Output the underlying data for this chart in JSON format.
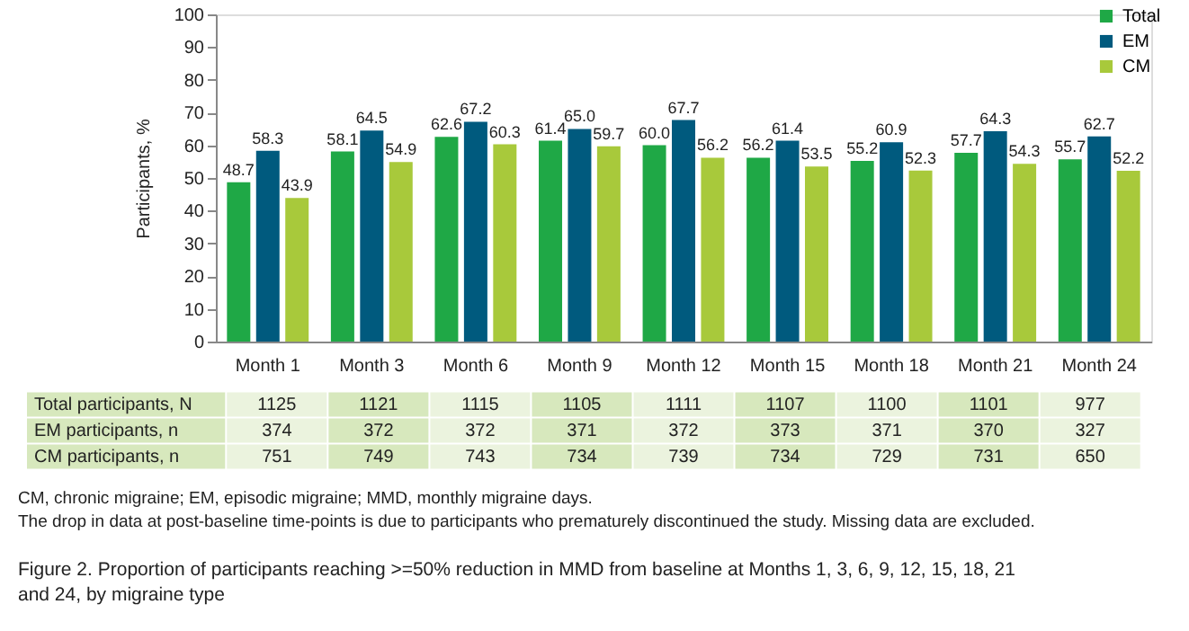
{
  "chart_data": {
    "type": "bar",
    "categories": [
      "Month 1",
      "Month 3",
      "Month 6",
      "Month 9",
      "Month 12",
      "Month 15",
      "Month 18",
      "Month 21",
      "Month 24"
    ],
    "series": [
      {
        "name": "Total",
        "color": "#1fa846",
        "values": [
          48.7,
          58.1,
          62.6,
          61.4,
          60,
          56.2,
          55.2,
          57.7,
          55.7
        ],
        "value_labels": [
          "48.7",
          "58.1",
          "62.6",
          "61.4",
          "60.0",
          "56.2",
          "55.2",
          "57.7",
          "55.7"
        ]
      },
      {
        "name": "EM",
        "color": "#005a7e",
        "values": [
          58.3,
          64.5,
          67.2,
          65,
          67.7,
          61.4,
          60.9,
          64.3,
          62.7
        ],
        "value_labels": [
          "58.3",
          "64.5",
          "67.2",
          "65.0",
          "67.7",
          "61.4",
          "60.9",
          "64.3",
          "62.7"
        ]
      },
      {
        "name": "CM",
        "color": "#a8c93b",
        "values": [
          43.9,
          54.9,
          60.3,
          59.7,
          56.2,
          53.5,
          52.3,
          54.3,
          52.2
        ]
      }
    ],
    "ylabel": "Participants, %",
    "ylim": [
      0,
      100
    ],
    "yticks": [
      0,
      10,
      20,
      30,
      40,
      50,
      60,
      70,
      80,
      90,
      100
    ],
    "grid": false,
    "legend": "top right",
    "data_labels": true,
    "annotations": [
      "Total participants, N",
      "1125",
      "1121",
      "1115",
      "1105",
      "1111",
      "1107",
      "1100",
      "1101",
      "977",
      "EM participants, n",
      "374",
      "372",
      "372",
      "371",
      "372",
      "373",
      "371",
      "370",
      "327",
      "CM participants, n",
      "751",
      "749",
      "743",
      "734",
      "739",
      "734",
      "729",
      "731",
      "650",
      "CM, chronic migraine; EM, episodic migraine; MMD, monthly migraine days.",
      "The drop in data at post-baseline time-points is due to participants who prematurely discontinued the study. Missing data are excluded.",
      "Figure 2. Proportion of participants reaching >=50% reduction in MMD from baseline at Months 1, 3, 6, 9, 12, 15, 18, 21 and 24, by migraine type"
    ]
  }
}
